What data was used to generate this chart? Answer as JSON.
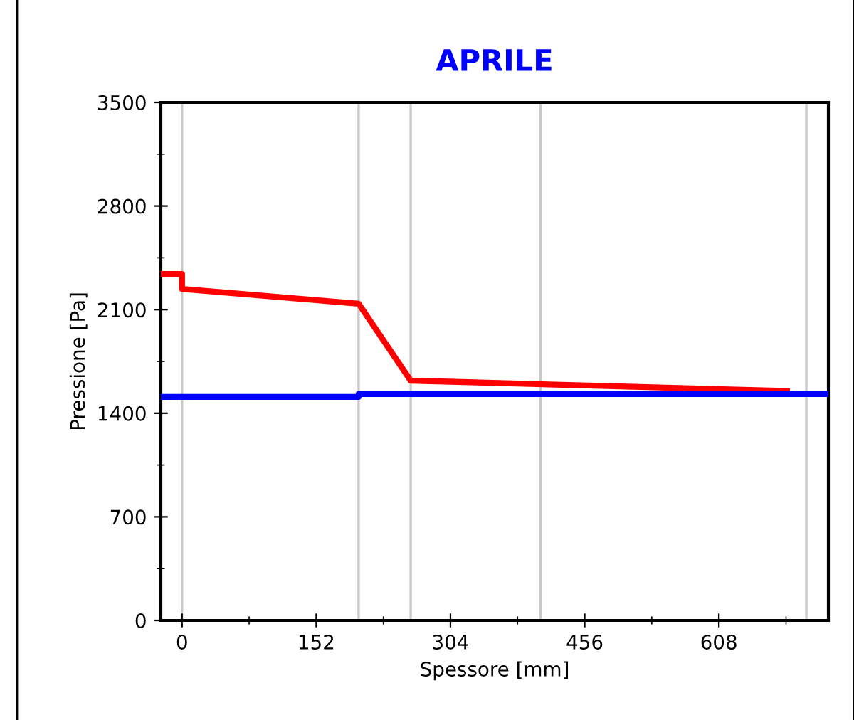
{
  "chart_data": {
    "type": "line",
    "title": "APRILE",
    "xlabel": "Spessore [mm]",
    "ylabel": "Pressione [Pa]",
    "xlim": [
      -24,
      732
    ],
    "ylim": [
      0,
      3500
    ],
    "xticks": [
      0,
      152,
      304,
      456,
      608
    ],
    "yticks": [
      0,
      700,
      1400,
      2100,
      2800,
      3500
    ],
    "series": [
      {
        "color": "#ff0000",
        "x": [
          -24,
          0,
          0,
          200,
          259,
          685
        ],
        "values": [
          2340,
          2340,
          2240,
          2140,
          1620,
          1550
        ]
      },
      {
        "color": "#0000ff",
        "x": [
          -24,
          200,
          200,
          732
        ],
        "values": [
          1510,
          1510,
          1530,
          1530
        ]
      }
    ],
    "ref_lines": [
      {
        "axis": "x",
        "value": 0,
        "color": "#c8c8c8"
      },
      {
        "axis": "x",
        "value": 200,
        "color": "#c8c8c8"
      },
      {
        "axis": "x",
        "value": 259,
        "color": "#c8c8c8"
      },
      {
        "axis": "x",
        "value": 406,
        "color": "#c8c8c8"
      },
      {
        "axis": "x",
        "value": 707,
        "color": "#c8c8c8"
      }
    ],
    "grid": false,
    "legend": false
  }
}
